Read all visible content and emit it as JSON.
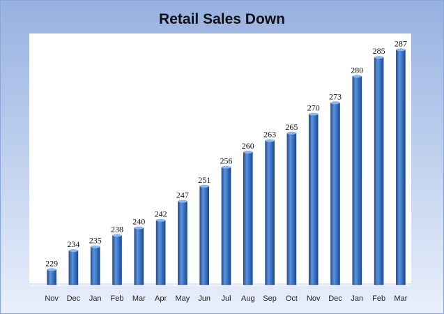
{
  "chart_data": {
    "type": "bar",
    "title": "Retail Sales Down",
    "xlabel": "",
    "ylabel": "",
    "categories": [
      "Nov",
      "Dec",
      "Jan",
      "Feb",
      "Mar",
      "Apr",
      "May",
      "Jun",
      "Jul",
      "Aug",
      "Sep",
      "Oct",
      "Nov",
      "Dec",
      "Jan",
      "Feb",
      "Mar"
    ],
    "values": [
      229,
      234,
      235,
      238,
      240,
      242,
      247,
      251,
      256,
      260,
      263,
      265,
      270,
      273,
      280,
      285,
      287
    ],
    "ylim": [
      225,
      290
    ],
    "grid": false,
    "legend": "none",
    "data_labels": true,
    "bar_color": "#3f78c8",
    "plot_background": "#ffffff"
  }
}
